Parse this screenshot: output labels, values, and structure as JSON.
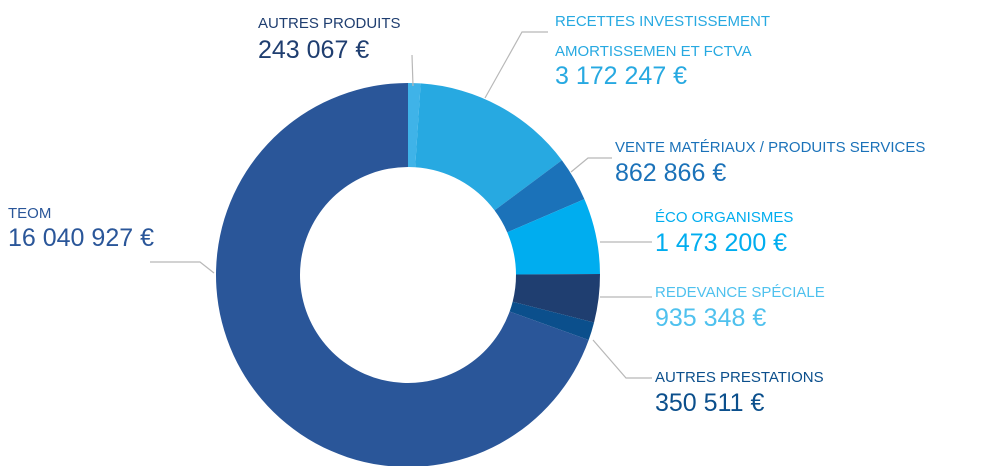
{
  "chart_data": {
    "type": "donut",
    "categories": [
      [
        "AUTRES PRODUITS"
      ],
      [
        "RECETTES INVESTISSEMENT",
        "AMORTISSEMEN ET FCTVA"
      ],
      [
        "VENTE MATÉRIAUX / PRODUITS SERVICES"
      ],
      [
        "ÉCO ORGANISMES"
      ],
      [
        "REDEVANCE SPÉCIALE"
      ],
      [
        "AUTRES PRESTATIONS"
      ],
      [
        "TEOM"
      ]
    ],
    "values": [
      243067,
      3172247,
      862866,
      1473200,
      935348,
      350511,
      16040927
    ],
    "value_labels": [
      "243 067 €",
      "3 172 247 €",
      "862 866 €",
      "1 473 200 €",
      "935 348 €",
      "350 511 €",
      "16 040 927 €"
    ],
    "colors": [
      "#3fb3e8",
      "#27a9e1",
      "#1b72b9",
      "#00adef",
      "#1f3e70",
      "#0b4f8c",
      "#2a5699"
    ],
    "label_colors": [
      "#1f3e70",
      "#27a9e1",
      "#1b72b9",
      "#00adef",
      "#4fc1ee",
      "#0b4f8c",
      "#2a5699"
    ]
  }
}
